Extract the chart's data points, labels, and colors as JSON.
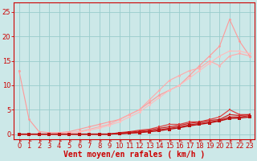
{
  "xlabel": "Vent moyen/en rafales ( km/h )",
  "xlabel_color": "#cc0000",
  "bg_color": "#cce8e8",
  "grid_color": "#99cccc",
  "xlim": [
    -0.5,
    23.5
  ],
  "ylim": [
    -1,
    27
  ],
  "xticks": [
    0,
    1,
    2,
    3,
    4,
    5,
    6,
    7,
    8,
    9,
    10,
    11,
    12,
    13,
    14,
    15,
    16,
    17,
    18,
    19,
    20,
    21,
    22,
    23
  ],
  "yticks": [
    0,
    5,
    10,
    15,
    20,
    25
  ],
  "tick_color": "#cc0000",
  "tick_fontsize": 6,
  "xlabel_fontsize": 7,
  "lines": [
    {
      "x": [
        0,
        1,
        2,
        3,
        4,
        5,
        6,
        7,
        8,
        9,
        10,
        11,
        12,
        13,
        14,
        15,
        16,
        17,
        18,
        19,
        20,
        21,
        22,
        23
      ],
      "y": [
        13,
        3,
        0.5,
        0.3,
        0.3,
        0.5,
        1,
        1.5,
        2,
        2.5,
        3,
        4,
        5,
        6.5,
        8,
        9,
        10,
        12,
        14,
        16,
        18,
        23.5,
        19,
        16
      ],
      "color": "#ff9999",
      "lw": 0.8,
      "marker": "o",
      "ms": 2.0
    },
    {
      "x": [
        0,
        1,
        2,
        3,
        4,
        5,
        6,
        7,
        8,
        9,
        10,
        11,
        12,
        13,
        14,
        15,
        16,
        17,
        18,
        19,
        20,
        21,
        22,
        23
      ],
      "y": [
        0,
        0,
        0,
        0,
        0.2,
        0.3,
        0.5,
        1,
        1.5,
        2,
        3,
        4,
        5,
        7,
        9,
        11,
        12,
        13,
        13.5,
        15,
        14,
        16,
        16.5,
        16
      ],
      "color": "#ffaaaa",
      "lw": 0.8,
      "marker": "o",
      "ms": 2.0
    },
    {
      "x": [
        0,
        1,
        2,
        3,
        4,
        5,
        6,
        7,
        8,
        9,
        10,
        11,
        12,
        13,
        14,
        15,
        16,
        17,
        18,
        19,
        20,
        21,
        22,
        23
      ],
      "y": [
        0,
        0,
        0,
        0,
        0,
        0.2,
        0.4,
        0.8,
        1.2,
        1.8,
        2.5,
        3.5,
        4.5,
        6,
        7.5,
        9,
        10,
        11.5,
        13,
        14.5,
        16,
        17,
        17,
        16.5
      ],
      "color": "#ffbbbb",
      "lw": 0.8,
      "marker": "o",
      "ms": 2.0
    },
    {
      "x": [
        0,
        1,
        2,
        3,
        4,
        5,
        6,
        7,
        8,
        9,
        10,
        11,
        12,
        13,
        14,
        15,
        16,
        17,
        18,
        19,
        20,
        21,
        22,
        23
      ],
      "y": [
        0,
        0,
        0,
        0,
        0,
        0,
        0,
        0,
        0,
        0,
        0.3,
        0.5,
        0.8,
        1,
        1.5,
        2,
        2,
        2.5,
        2.5,
        3,
        3.5,
        5,
        4,
        4
      ],
      "color": "#dd4444",
      "lw": 0.9,
      "marker": "s",
      "ms": 2.0
    },
    {
      "x": [
        0,
        1,
        2,
        3,
        4,
        5,
        6,
        7,
        8,
        9,
        10,
        11,
        12,
        13,
        14,
        15,
        16,
        17,
        18,
        19,
        20,
        21,
        22,
        23
      ],
      "y": [
        0,
        0,
        0,
        0,
        0,
        0,
        0,
        0,
        0,
        0,
        0.2,
        0.4,
        0.6,
        0.8,
        1.2,
        1.5,
        1.8,
        2.2,
        2.5,
        2.8,
        3,
        4,
        3.8,
        4
      ],
      "color": "#cc2222",
      "lw": 0.9,
      "marker": "s",
      "ms": 2.0
    },
    {
      "x": [
        0,
        1,
        2,
        3,
        4,
        5,
        6,
        7,
        8,
        9,
        10,
        11,
        12,
        13,
        14,
        15,
        16,
        17,
        18,
        19,
        20,
        21,
        22,
        23
      ],
      "y": [
        0,
        0,
        0,
        0,
        0,
        0,
        0,
        0,
        0,
        0,
        0.1,
        0.2,
        0.4,
        0.6,
        0.9,
        1.2,
        1.5,
        1.9,
        2.2,
        2.5,
        2.8,
        3.5,
        3.5,
        3.8
      ],
      "color": "#cc2222",
      "lw": 0.9,
      "marker": "s",
      "ms": 2.0
    },
    {
      "x": [
        0,
        1,
        2,
        3,
        4,
        5,
        6,
        7,
        8,
        9,
        10,
        11,
        12,
        13,
        14,
        15,
        16,
        17,
        18,
        19,
        20,
        21,
        22,
        23
      ],
      "y": [
        0,
        0,
        0,
        0,
        0,
        0,
        0,
        0,
        0,
        0,
        0.1,
        0.2,
        0.3,
        0.5,
        0.7,
        1.0,
        1.3,
        1.7,
        2.0,
        2.3,
        2.7,
        3.2,
        3.3,
        3.5
      ],
      "color": "#bb1111",
      "lw": 1.0,
      "marker": "s",
      "ms": 2.2
    }
  ]
}
